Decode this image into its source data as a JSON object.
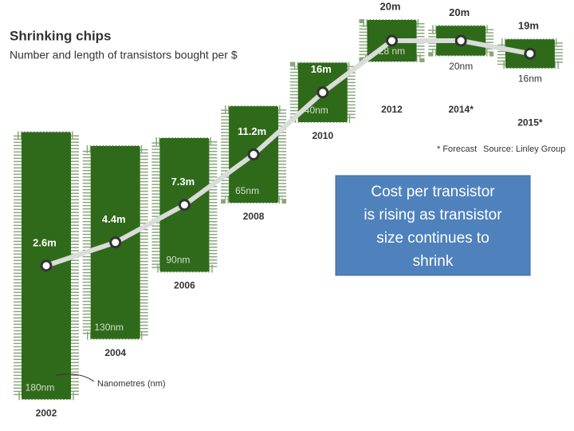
{
  "chart_data": {
    "type": "line",
    "title": "Shrinking chips",
    "subtitle": "Number and length of transistors bought per $",
    "categories": [
      "2002",
      "2004",
      "2006",
      "2008",
      "2010",
      "2012",
      "2014*",
      "2015*"
    ],
    "values": [
      2.6,
      4.4,
      7.3,
      11.2,
      16,
      20,
      20,
      19
    ],
    "value_labels": [
      "2.6m",
      "4.4m",
      "7.3m",
      "11.2m",
      "16m",
      "20m",
      "20m",
      "19m"
    ],
    "node_sizes": [
      180,
      130,
      90,
      65,
      40,
      28,
      20,
      16
    ],
    "node_labels": [
      "180nm",
      "130nm",
      "90nm",
      "65nm",
      "40nm",
      "28 nm",
      "20nm",
      "16nm"
    ],
    "line_color": "#d9dcd9",
    "chip_color": "#2f6a1b",
    "annotation": "Nanometres (nm)",
    "footnote": "* Forecast",
    "source": "Source: Linley Group",
    "callout": [
      "Cost per transistor",
      "is rising as transistor",
      "size continues to",
      "shrink"
    ]
  }
}
